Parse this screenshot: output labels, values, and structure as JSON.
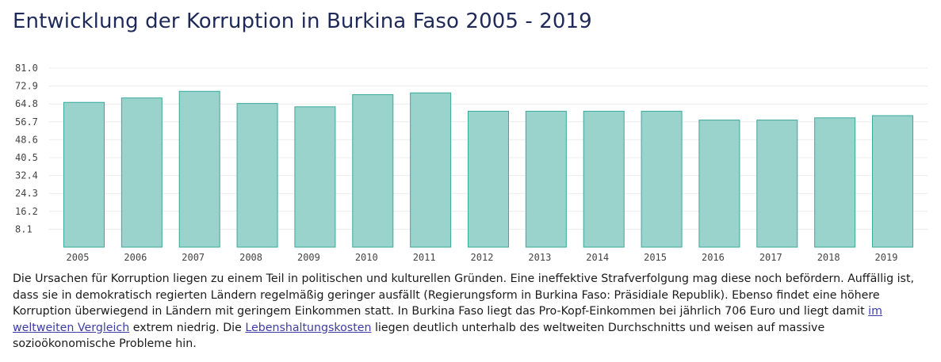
{
  "page": {
    "title": "Entwicklung der Korruption in Burkina Faso 2005 - 2019"
  },
  "chart_data": {
    "type": "bar",
    "title": "",
    "xlabel": "",
    "ylabel": "",
    "categories": [
      "2005",
      "2006",
      "2007",
      "2008",
      "2009",
      "2010",
      "2011",
      "2012",
      "2013",
      "2014",
      "2015",
      "2016",
      "2017",
      "2018",
      "2019"
    ],
    "values": [
      65.5,
      67.5,
      70.5,
      65.0,
      63.5,
      69.0,
      69.8,
      61.5,
      61.5,
      61.5,
      61.5,
      57.5,
      57.5,
      58.5,
      59.5
    ],
    "ylim": [
      0,
      81.0
    ],
    "yticks": [
      "8.1",
      "16.2",
      "24.3",
      "32.4",
      "40.5",
      "48.6",
      "56.7",
      "64.8",
      "72.9",
      "81.0"
    ],
    "grid": true,
    "bar_fill": "#99d3cc",
    "bar_stroke": "#3aa89d"
  },
  "description": {
    "text_1": "Die Ursachen für Korruption liegen zu einem Teil in politischen und kulturellen Gründen. Eine ineffektive Strafverfolgung mag diese noch befördern. Auffällig ist, dass sie in demokratisch regierten Ländern regelmäßig geringer ausfällt (Regierungsform in Burkina Faso: Präsidiale Republik). Ebenso findet eine höhere Korruption überwiegend in Ländern mit geringem Einkommen statt. In Burkina Faso liegt das Pro-Kopf-Einkommen bei jährlich 706 Euro und liegt damit ",
    "link_1": "im weltweiten Vergleich",
    "text_2": " extrem niedrig. Die ",
    "link_2": "Lebenshaltungskosten",
    "text_3": " liegen deutlich unterhalb des weltweiten Durchschnitts und weisen auf massive sozioökonomische Probleme hin."
  }
}
